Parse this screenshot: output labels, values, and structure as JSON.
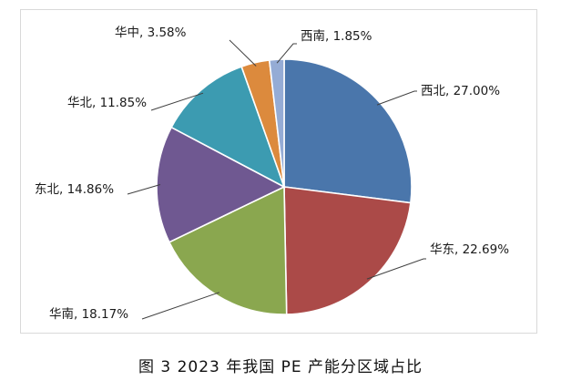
{
  "figure": {
    "caption": "图 3 2023 年我国 PE 产能分区域占比"
  },
  "chart_data": {
    "type": "pie",
    "title": "",
    "slices": [
      {
        "name": "西北",
        "value": 27.0,
        "label": "西北, 27.00%",
        "color": "#4a76ab"
      },
      {
        "name": "华东",
        "value": 22.69,
        "label": "华东, 22.69%",
        "color": "#ab4a48"
      },
      {
        "name": "华南",
        "value": 18.17,
        "label": "华南, 18.17%",
        "color": "#8aa74f"
      },
      {
        "name": "东北",
        "value": 14.86,
        "label": "东北, 14.86%",
        "color": "#6f5891"
      },
      {
        "name": "华北",
        "value": 11.85,
        "label": "华北, 11.85%",
        "color": "#3c9bb1"
      },
      {
        "name": "华中",
        "value": 3.58,
        "label": "华中, 3.58%",
        "color": "#dc8a3d"
      },
      {
        "name": "西南",
        "value": 1.85,
        "label": "西南, 1.85%",
        "color": "#95acd5"
      }
    ],
    "start_angle_deg": 0,
    "direction": "clockwise",
    "slice_borders": "white",
    "leader_lines": true
  }
}
